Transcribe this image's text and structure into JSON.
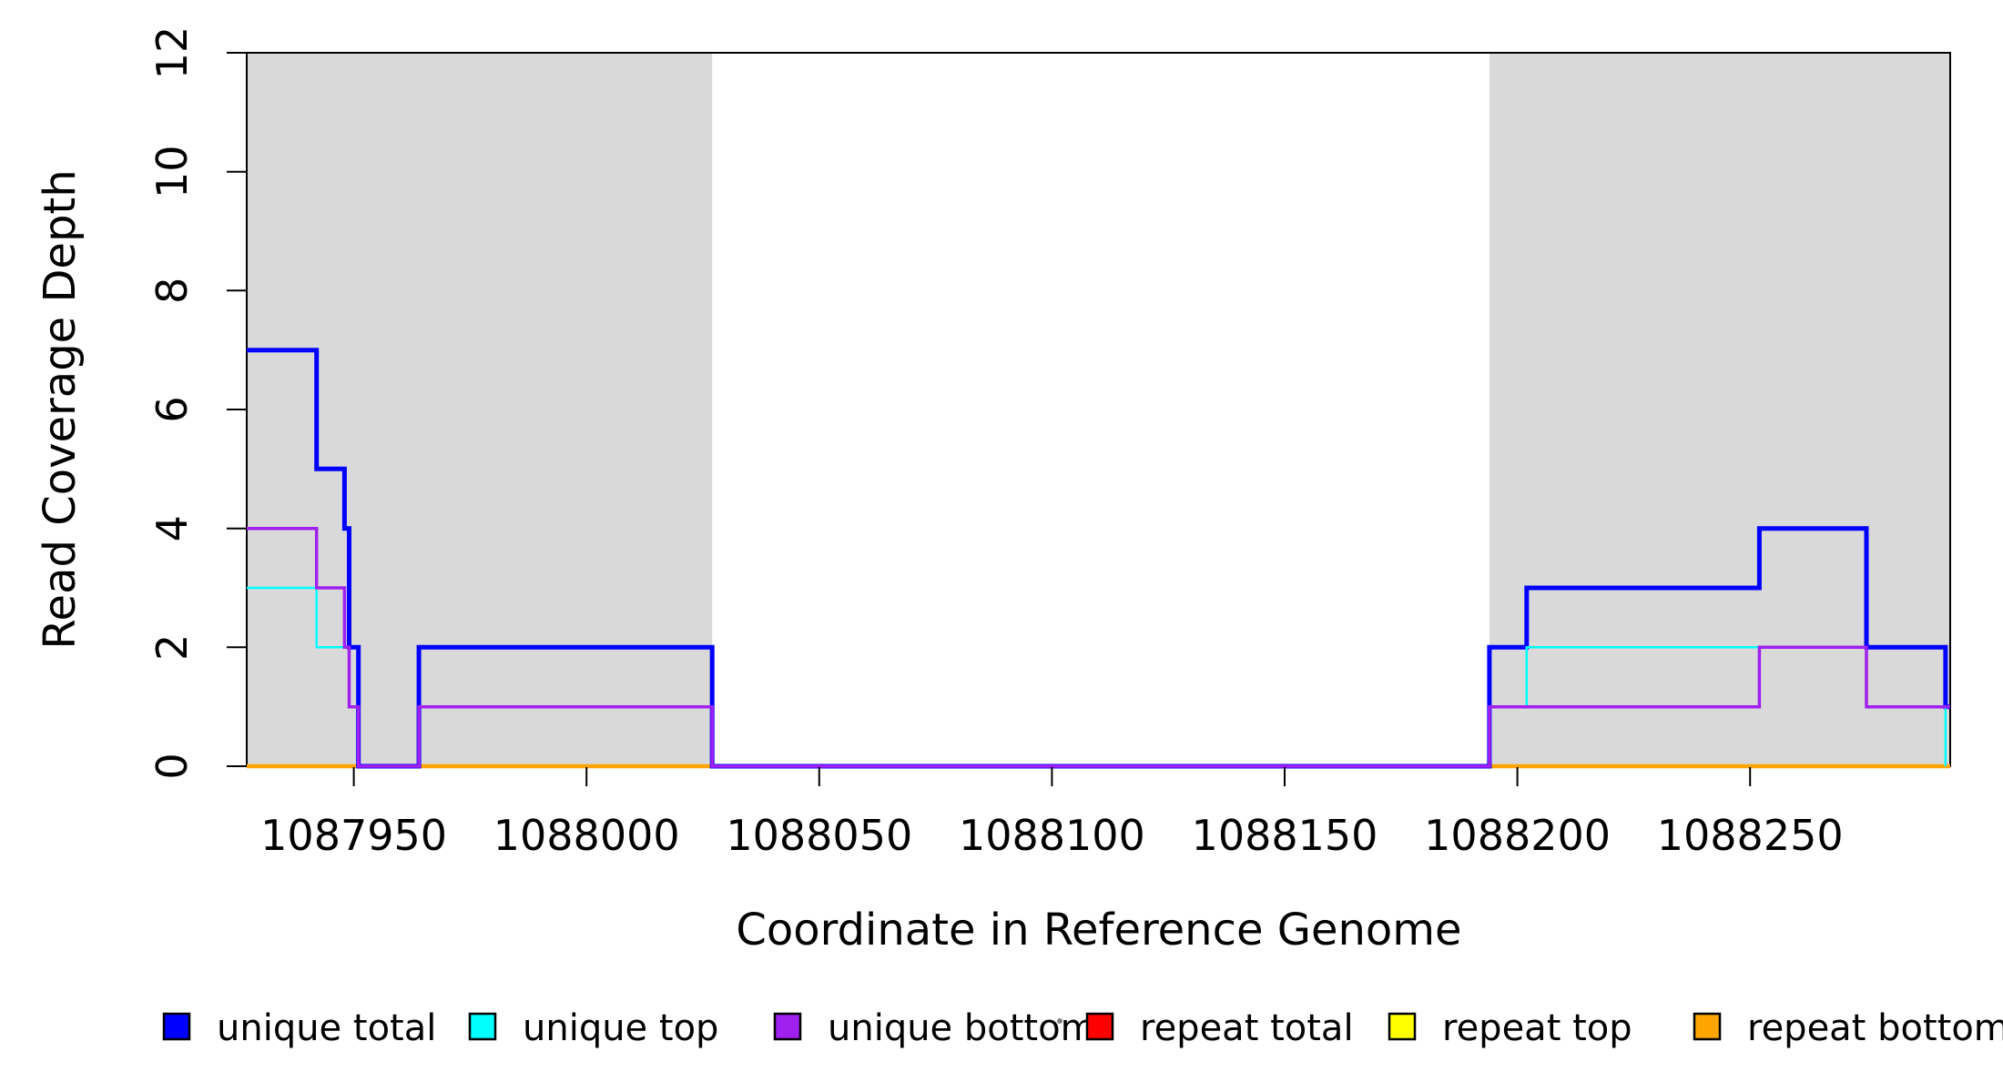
{
  "chart_data": {
    "type": "line",
    "step": "post",
    "title": "",
    "xlabel": "Coordinate in Reference Genome",
    "ylabel": "Read Coverage Depth",
    "xlim": [
      1087927,
      1088293
    ],
    "ylim": [
      0,
      12
    ],
    "x_ticks": [
      1087950,
      1088000,
      1088050,
      1088100,
      1088150,
      1088200,
      1088250
    ],
    "y_ticks": [
      0,
      2,
      4,
      6,
      8,
      10,
      12
    ],
    "grid": false,
    "legend_position": "bottom",
    "axis_color": "#000000",
    "background_regions": [
      {
        "name": "repeat-region-left",
        "x0": 1087927,
        "x1": 1088027,
        "color": "#d9d9d9"
      },
      {
        "name": "repeat-region-right",
        "x0": 1088194,
        "x1": 1088293,
        "color": "#d9d9d9"
      }
    ],
    "series": [
      {
        "name": "repeat total",
        "color": "#ff0000",
        "width": 3,
        "segments": [
          [
            [
              1087927,
              0
            ],
            [
              1088027,
              0
            ]
          ],
          [
            [
              1088194,
              0
            ],
            [
              1088293,
              0
            ]
          ]
        ]
      },
      {
        "name": "repeat top",
        "color": "#ffff00",
        "width": 3,
        "segments": [
          [
            [
              1087927,
              0
            ],
            [
              1088027,
              0
            ]
          ],
          [
            [
              1088194,
              0
            ],
            [
              1088293,
              0
            ]
          ]
        ]
      },
      {
        "name": "repeat bottom",
        "color": "#ffa500",
        "width": 4.5,
        "segments": [
          [
            [
              1087927,
              0
            ],
            [
              1088027,
              0
            ]
          ],
          [
            [
              1088194,
              0
            ],
            [
              1088293,
              0
            ]
          ]
        ]
      },
      {
        "name": "unique total",
        "color": "#0000ff",
        "width": 5,
        "segments": [
          [
            [
              1087927,
              7
            ],
            [
              1087942,
              5
            ],
            [
              1087948,
              4
            ],
            [
              1087949,
              2
            ],
            [
              1087951,
              0
            ],
            [
              1087964,
              2
            ],
            [
              1088027,
              0
            ],
            [
              1088194,
              2
            ],
            [
              1088202,
              3
            ],
            [
              1088252,
              4
            ],
            [
              1088275,
              2
            ],
            [
              1088292,
              1
            ],
            [
              1088293,
              1
            ]
          ]
        ]
      },
      {
        "name": "unique top",
        "color": "#00ffff",
        "width": 2.5,
        "segments": [
          [
            [
              1087927,
              3
            ],
            [
              1087942,
              2
            ],
            [
              1087949,
              1
            ],
            [
              1087951,
              0
            ],
            [
              1087964,
              1
            ],
            [
              1088027,
              0
            ],
            [
              1088194,
              1
            ],
            [
              1088202,
              2
            ],
            [
              1088275,
              1
            ],
            [
              1088292,
              0
            ]
          ]
        ]
      },
      {
        "name": "unique bottom",
        "color": "#a020f0",
        "width": 3.5,
        "segments": [
          [
            [
              1087927,
              4
            ],
            [
              1087942,
              3
            ],
            [
              1087948,
              2
            ],
            [
              1087949,
              1
            ],
            [
              1087951,
              0
            ],
            [
              1087964,
              1
            ],
            [
              1088027,
              0
            ],
            [
              1088194,
              1
            ],
            [
              1088252,
              2
            ],
            [
              1088275,
              1
            ],
            [
              1088293,
              1
            ]
          ]
        ]
      }
    ],
    "legend": {
      "items": [
        {
          "label": "unique total",
          "color": "#0000ff"
        },
        {
          "label": "unique top",
          "color": "#00ffff"
        },
        {
          "label": "unique bottom",
          "color": "#a020f0"
        },
        {
          "label": "repeat total",
          "color": "#ff0000"
        },
        {
          "label": "repeat top",
          "color": "#ffff00"
        },
        {
          "label": "repeat bottom",
          "color": "#ffa500"
        }
      ]
    },
    "artifact_dot": {
      "x": 1164,
      "y": 1122,
      "color": "#808080"
    }
  }
}
